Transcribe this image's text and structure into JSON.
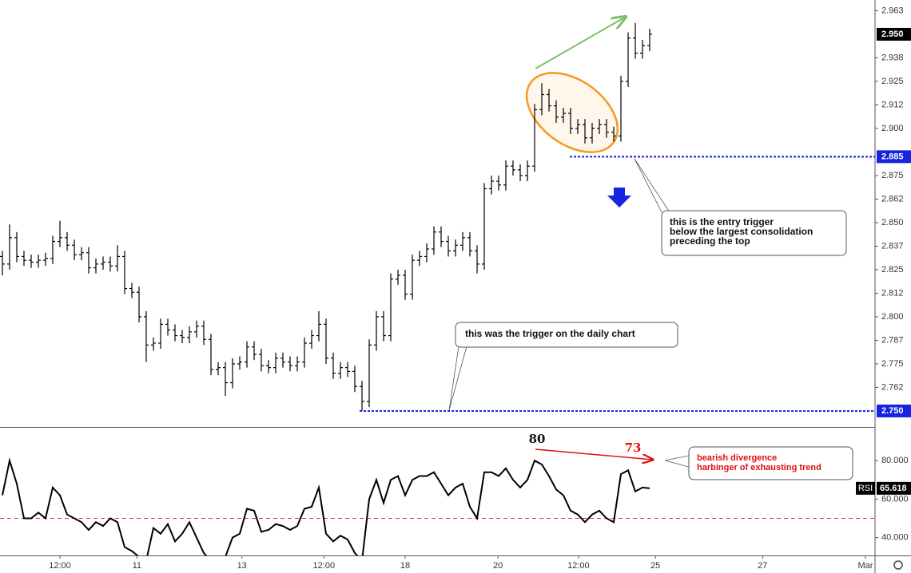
{
  "chart_data": [
    {
      "type": "ohlc",
      "color": "#000000",
      "open": [
        2.832,
        2.828,
        2.842,
        2.832,
        2.83,
        2.829,
        2.83,
        2.831,
        2.84,
        2.842,
        2.838,
        2.833,
        2.834,
        2.826,
        2.828,
        2.829,
        2.827,
        2.832,
        2.815,
        2.813,
        2.8,
        2.785,
        2.786,
        2.796,
        2.793,
        2.79,
        2.789,
        2.792,
        2.795,
        2.788,
        2.772,
        2.773,
        2.765,
        2.775,
        2.776,
        2.784,
        2.78,
        2.774,
        2.773,
        2.778,
        2.776,
        2.774,
        2.776,
        2.786,
        2.79,
        2.796,
        2.778,
        2.77,
        2.773,
        2.771,
        2.763,
        2.755,
        2.785,
        2.8,
        2.79,
        2.82,
        2.822,
        2.812,
        2.83,
        2.832,
        2.836,
        2.845,
        2.84,
        2.835,
        2.838,
        2.842,
        2.835,
        2.828,
        2.868,
        2.872,
        2.87,
        2.88,
        2.878,
        2.875,
        2.88,
        2.91,
        2.918,
        2.912,
        2.906,
        2.908,
        2.9,
        2.902,
        2.895,
        2.9,
        2.902,
        2.898,
        2.896,
        2.925,
        2.948,
        2.94,
        2.944
      ],
      "high": [
        2.835,
        2.849,
        2.845,
        2.835,
        2.833,
        2.833,
        2.834,
        2.843,
        2.851,
        2.845,
        2.841,
        2.837,
        2.837,
        2.831,
        2.832,
        2.832,
        2.838,
        2.835,
        2.818,
        2.816,
        2.803,
        2.789,
        2.799,
        2.799,
        2.796,
        2.793,
        2.795,
        2.798,
        2.798,
        2.791,
        2.776,
        2.776,
        2.778,
        2.779,
        2.787,
        2.787,
        2.783,
        2.777,
        2.781,
        2.781,
        2.779,
        2.779,
        2.789,
        2.793,
        2.803,
        2.799,
        2.781,
        2.776,
        2.776,
        2.774,
        2.766,
        2.788,
        2.803,
        2.803,
        2.823,
        2.825,
        2.825,
        2.833,
        2.835,
        2.839,
        2.848,
        2.848,
        2.843,
        2.841,
        2.845,
        2.845,
        2.838,
        2.871,
        2.875,
        2.875,
        2.883,
        2.883,
        2.881,
        2.883,
        2.913,
        2.924,
        2.921,
        2.915,
        2.911,
        2.911,
        2.905,
        2.905,
        2.903,
        2.905,
        2.905,
        2.901,
        2.928,
        2.951,
        2.956,
        2.947,
        2.953
      ],
      "low": [
        2.822,
        2.825,
        2.829,
        2.827,
        2.826,
        2.826,
        2.827,
        2.828,
        2.837,
        2.835,
        2.83,
        2.83,
        2.823,
        2.823,
        2.825,
        2.824,
        2.824,
        2.812,
        2.81,
        2.797,
        2.776,
        2.782,
        2.783,
        2.79,
        2.787,
        2.786,
        2.786,
        2.789,
        2.785,
        2.769,
        2.769,
        2.758,
        2.762,
        2.772,
        2.773,
        2.777,
        2.771,
        2.77,
        2.77,
        2.773,
        2.771,
        2.771,
        2.773,
        2.783,
        2.787,
        2.775,
        2.767,
        2.767,
        2.768,
        2.76,
        2.75,
        2.752,
        2.782,
        2.787,
        2.787,
        2.817,
        2.809,
        2.809,
        2.827,
        2.829,
        2.833,
        2.837,
        2.832,
        2.832,
        2.835,
        2.832,
        2.823,
        2.825,
        2.865,
        2.867,
        2.867,
        2.875,
        2.872,
        2.872,
        2.877,
        2.907,
        2.909,
        2.903,
        2.903,
        2.897,
        2.897,
        2.892,
        2.892,
        2.897,
        2.895,
        2.893,
        2.893,
        2.922,
        2.937,
        2.937,
        2.941
      ],
      "close": [
        2.828,
        2.842,
        2.832,
        2.83,
        2.829,
        2.83,
        2.831,
        2.84,
        2.842,
        2.838,
        2.833,
        2.834,
        2.826,
        2.828,
        2.829,
        2.827,
        2.832,
        2.815,
        2.813,
        2.8,
        2.785,
        2.786,
        2.796,
        2.793,
        2.79,
        2.789,
        2.792,
        2.795,
        2.788,
        2.772,
        2.773,
        2.765,
        2.775,
        2.776,
        2.784,
        2.78,
        2.774,
        2.773,
        2.778,
        2.776,
        2.774,
        2.776,
        2.786,
        2.79,
        2.796,
        2.778,
        2.77,
        2.773,
        2.771,
        2.763,
        2.755,
        2.785,
        2.8,
        2.79,
        2.82,
        2.822,
        2.812,
        2.83,
        2.832,
        2.836,
        2.845,
        2.84,
        2.835,
        2.838,
        2.842,
        2.835,
        2.828,
        2.868,
        2.872,
        2.87,
        2.88,
        2.878,
        2.875,
        2.88,
        2.91,
        2.918,
        2.912,
        2.906,
        2.908,
        2.9,
        2.902,
        2.895,
        2.9,
        2.902,
        2.898,
        2.896,
        2.925,
        2.948,
        2.94,
        2.944,
        2.95
      ],
      "ylim": [
        2.7415,
        2.9682
      ],
      "yticks": [
        {
          "value": 2.9625,
          "label": "2.963"
        },
        {
          "value": 2.9375,
          "label": "2.938"
        },
        2.925,
        {
          "value": 2.9125,
          "label": "2.912"
        },
        {
          "value": 2.9,
          "label": "2.900"
        },
        2.875,
        {
          "value": 2.8625,
          "label": "2.862"
        },
        {
          "value": 2.85,
          "label": "2.850"
        },
        {
          "value": 2.8375,
          "label": "2.837"
        },
        2.825,
        {
          "value": 2.8125,
          "label": "2.812"
        },
        {
          "value": 2.8,
          "label": "2.800"
        },
        {
          "value": 2.7875,
          "label": "2.787"
        },
        2.775,
        {
          "value": 2.7625,
          "label": "2.762"
        }
      ],
      "price_labels": [
        {
          "value": 2.95,
          "label": "2.950"
        },
        {
          "value": 2.885,
          "label": "2.885"
        },
        {
          "value": 2.75,
          "label": "2.750"
        }
      ],
      "annotations": [
        "this is the entry trigger",
        "below the largest consolidation",
        "preceding the top",
        "this was the trigger on the daily chart"
      ]
    },
    {
      "type": "line",
      "name": "RSI",
      "color": "#000000",
      "values": [
        62,
        80,
        68,
        50,
        50,
        53,
        50,
        66,
        62,
        52,
        50,
        48,
        44,
        48,
        46,
        50,
        48,
        35,
        33,
        30,
        28,
        45,
        42,
        47,
        38,
        42,
        48,
        40,
        32,
        28,
        28,
        30,
        40,
        42,
        55,
        54,
        43,
        44,
        47,
        46,
        44,
        46,
        55,
        56,
        66,
        42,
        38,
        41,
        39,
        32,
        28,
        60,
        70,
        58,
        70,
        72,
        62,
        70,
        72,
        72,
        74,
        68,
        62,
        66,
        68,
        56,
        50,
        74,
        74,
        72,
        76,
        70,
        66,
        70,
        80,
        78,
        72,
        65,
        62,
        54,
        52,
        48,
        52,
        54,
        50,
        48,
        73,
        75,
        64,
        66,
        65.618
      ],
      "value_labels": {
        "90": "65.618"
      },
      "level": 50,
      "ylim": [
        27.8,
        97.1
      ],
      "yticks": [
        {
          "value": 80,
          "label": "80.000"
        },
        {
          "value": 60,
          "label": "60.000"
        },
        {
          "value": 40,
          "label": "40.000"
        }
      ],
      "divergence": [
        80,
        73
      ],
      "annotations": [
        "bearish divergence",
        "harbinger of exhausting trend"
      ],
      "xlim": [
        0,
        121
      ],
      "xticks": [
        {
          "value": 8,
          "label": "12:00"
        },
        {
          "value": 18.7,
          "label": "11"
        },
        {
          "value": 33.3,
          "label": "13"
        },
        {
          "value": 44.7,
          "label": "12:00"
        },
        {
          "value": 56,
          "label": "18"
        },
        {
          "value": 68.9,
          "label": "20"
        },
        {
          "value": 80.1,
          "label": "12:00"
        },
        {
          "value": 90.8,
          "label": "25"
        },
        {
          "value": 105.7,
          "label": "27"
        },
        {
          "value": 120,
          "label": "Mar"
        }
      ]
    }
  ]
}
